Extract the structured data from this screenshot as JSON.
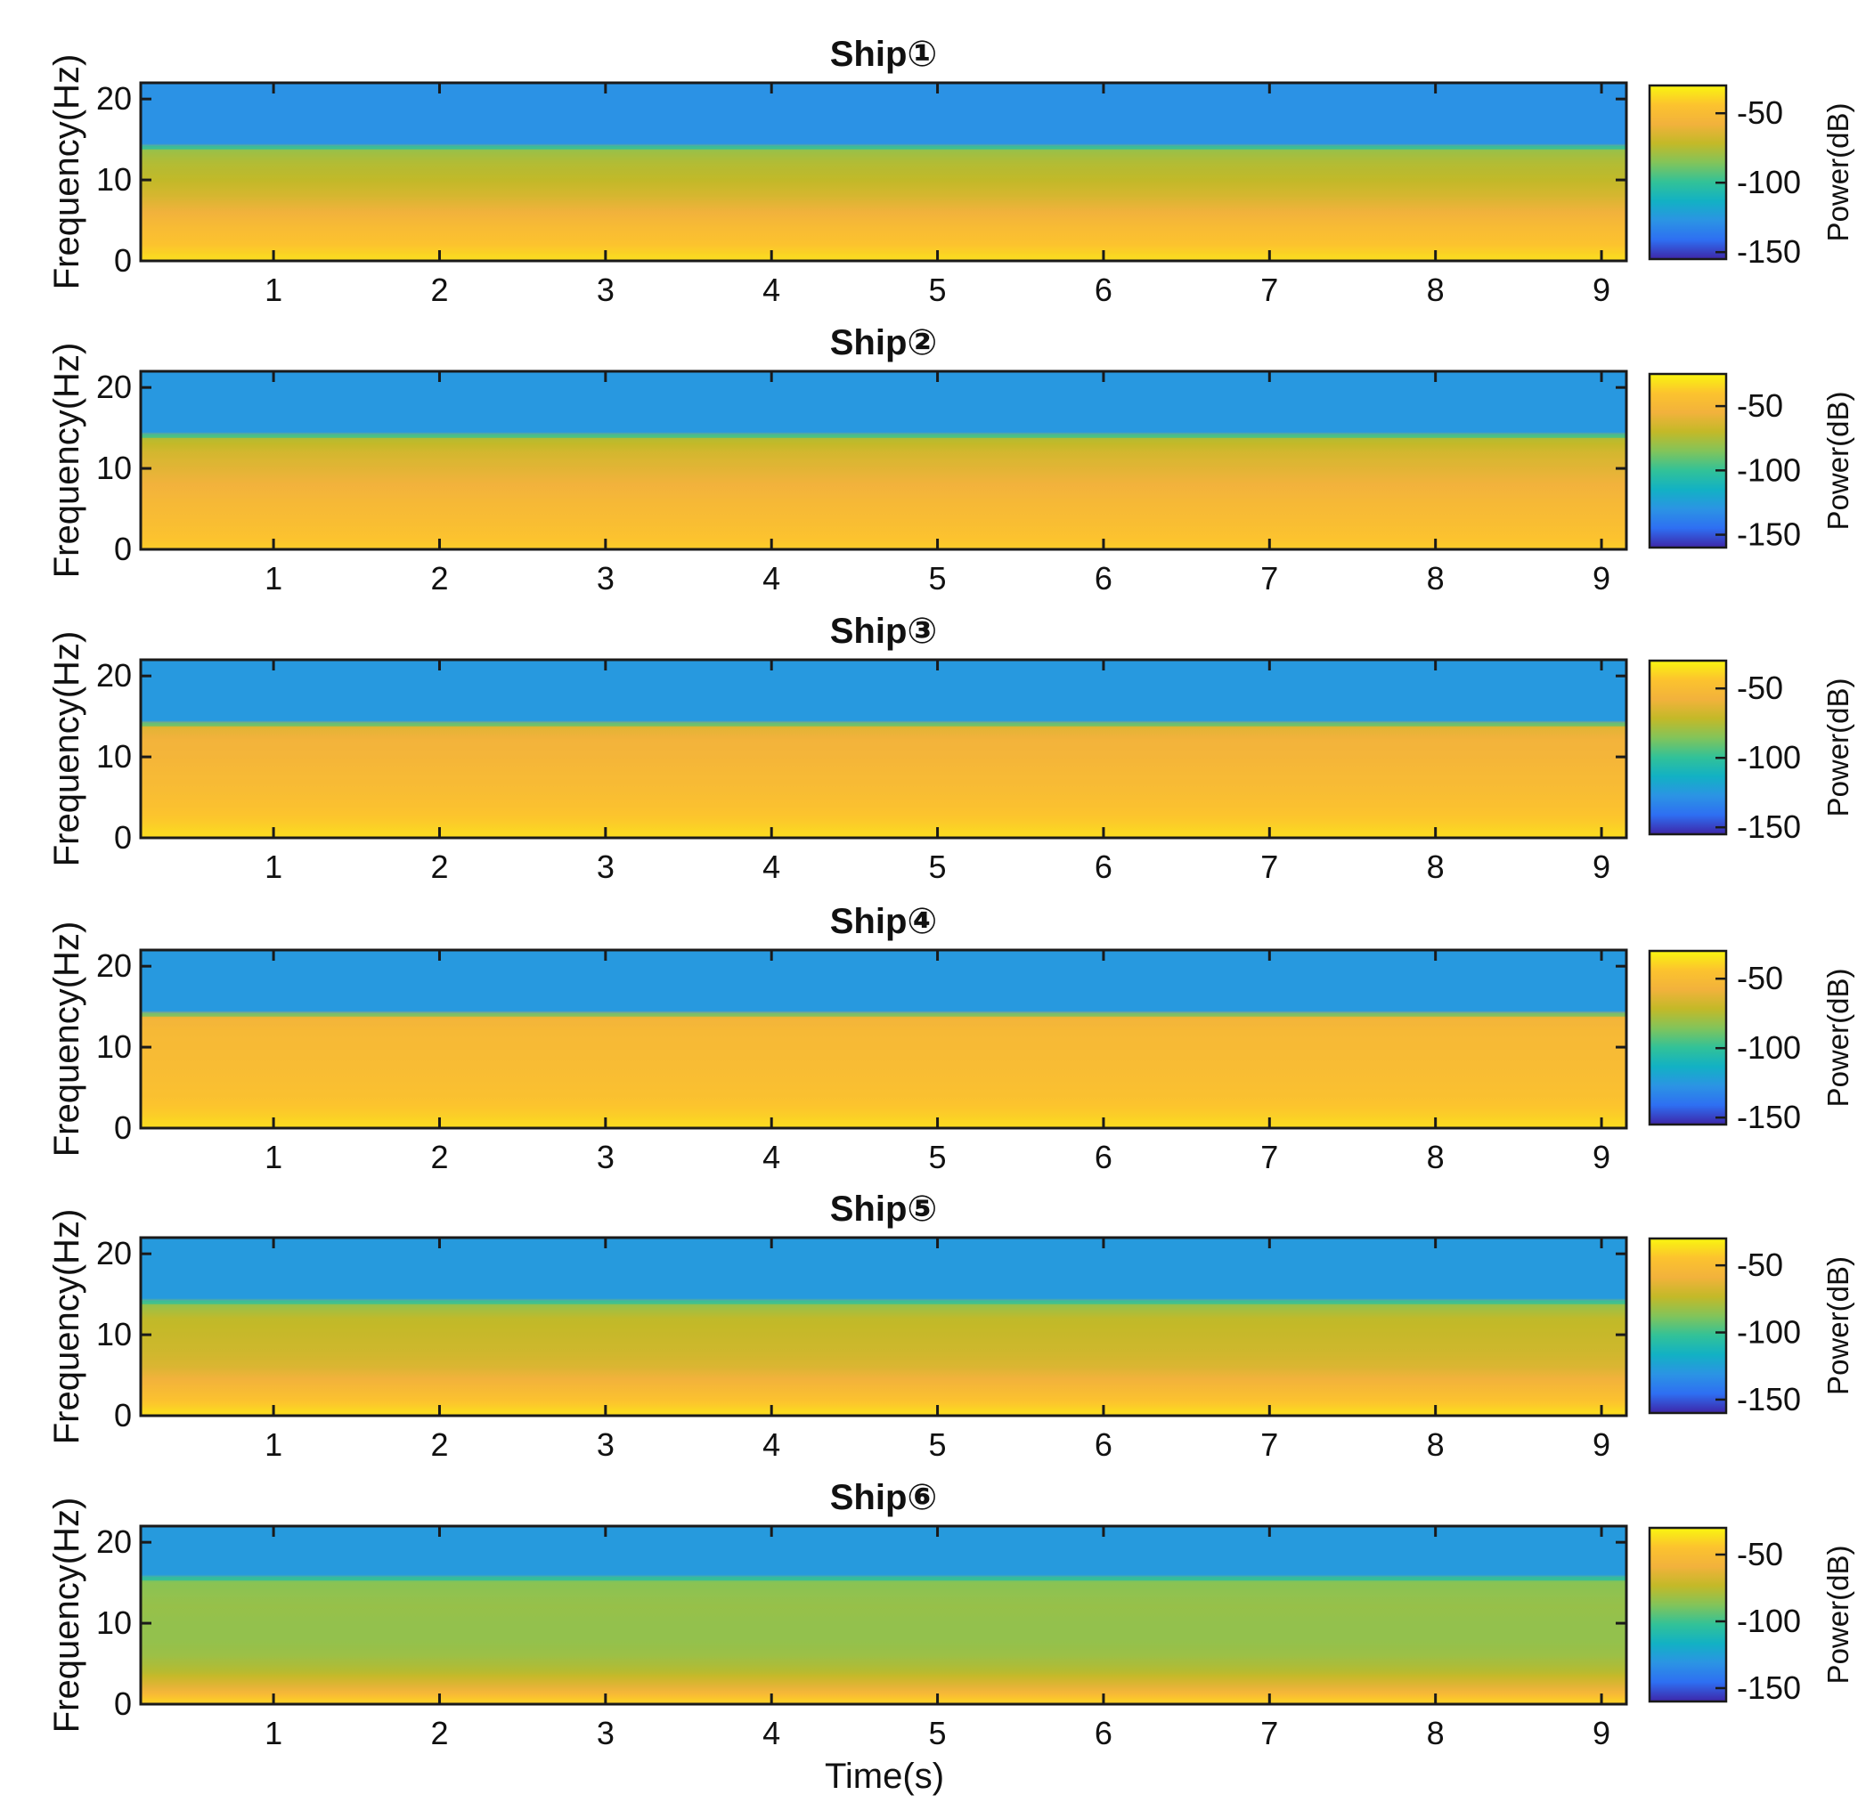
{
  "figure": {
    "xlabel": "Time(s)",
    "ylabel": "Frequency(Hz)",
    "colorbar_label": "Power(dB)",
    "colormap": [
      "#3e26a8",
      "#2e6ff2",
      "#2b94e4",
      "#12b1c4",
      "#32c298",
      "#82c45a",
      "#c3b928",
      "#f2b23c",
      "#fcc32e",
      "#f9f60f"
    ]
  },
  "chart_data": [
    {
      "type": "heatmap",
      "title": "Ship①",
      "xlabel": "",
      "ylabel": "Frequency(Hz)",
      "xlim": [
        0.2,
        9.15
      ],
      "ylim": [
        0,
        22
      ],
      "xticks": [
        1,
        2,
        3,
        4,
        5,
        6,
        7,
        8,
        9
      ],
      "yticks": [
        0,
        10,
        20
      ],
      "colorbar": {
        "label": "Power(dB)",
        "ticks": [
          -50,
          -100,
          -150
        ],
        "range": [
          -155,
          -30
        ]
      },
      "cutoff_hz": 14,
      "power_db_by_band": {
        "f_hz": [
          0.5,
          2,
          4,
          6,
          8,
          10,
          12,
          13.5,
          18
        ],
        "db": [
          -38,
          -44,
          -50,
          -58,
          -66,
          -72,
          -75,
          -80,
          -128
        ]
      }
    },
    {
      "type": "heatmap",
      "title": "Ship②",
      "xlabel": "",
      "ylabel": "Frequency(Hz)",
      "xlim": [
        0.2,
        9.15
      ],
      "ylim": [
        0,
        22
      ],
      "xticks": [
        1,
        2,
        3,
        4,
        5,
        6,
        7,
        8,
        9
      ],
      "yticks": [
        0,
        10,
        20
      ],
      "colorbar": {
        "label": "Power(dB)",
        "ticks": [
          -50,
          -100,
          -150
        ],
        "range": [
          -160,
          -25
        ]
      },
      "cutoff_hz": 14,
      "power_db_by_band": {
        "f_hz": [
          0.5,
          2,
          4,
          6,
          8,
          10,
          12,
          13.5,
          18
        ],
        "db": [
          -38,
          -42,
          -46,
          -50,
          -55,
          -60,
          -65,
          -72,
          -128
        ]
      }
    },
    {
      "type": "heatmap",
      "title": "Ship③",
      "xlabel": "",
      "ylabel": "Frequency(Hz)",
      "xlim": [
        0.2,
        9.15
      ],
      "ylim": [
        0,
        22
      ],
      "xticks": [
        1,
        2,
        3,
        4,
        5,
        6,
        7,
        8,
        9
      ],
      "yticks": [
        0,
        10,
        20
      ],
      "colorbar": {
        "label": "Power(dB)",
        "ticks": [
          -50,
          -100,
          -150
        ],
        "range": [
          -155,
          -30
        ]
      },
      "cutoff_hz": 14,
      "power_db_by_band": {
        "f_hz": [
          0.5,
          2,
          4,
          6,
          8,
          10,
          12,
          13.5,
          18
        ],
        "db": [
          -38,
          -42,
          -46,
          -50,
          -52,
          -55,
          -57,
          -62,
          -125
        ]
      }
    },
    {
      "type": "heatmap",
      "title": "Ship④",
      "xlabel": "",
      "ylabel": "Frequency(Hz)",
      "xlim": [
        0.2,
        9.15
      ],
      "ylim": [
        0,
        22
      ],
      "xticks": [
        1,
        2,
        3,
        4,
        5,
        6,
        7,
        8,
        9
      ],
      "yticks": [
        0,
        10,
        20
      ],
      "colorbar": {
        "label": "Power(dB)",
        "ticks": [
          -50,
          -100,
          -150
        ],
        "range": [
          -155,
          -30
        ]
      },
      "cutoff_hz": 14,
      "power_db_by_band": {
        "f_hz": [
          0.5,
          2,
          4,
          6,
          8,
          10,
          12,
          13.5,
          18
        ],
        "db": [
          -38,
          -42,
          -46,
          -48,
          -50,
          -51,
          -52,
          -56,
          -125
        ]
      }
    },
    {
      "type": "heatmap",
      "title": "Ship⑤",
      "xlabel": "",
      "ylabel": "Frequency(Hz)",
      "xlim": [
        0.2,
        9.15
      ],
      "ylim": [
        0,
        22
      ],
      "xticks": [
        1,
        2,
        3,
        4,
        5,
        6,
        7,
        8,
        9
      ],
      "yticks": [
        0,
        10,
        20
      ],
      "colorbar": {
        "label": "Power(dB)",
        "ticks": [
          -50,
          -100,
          -150
        ],
        "range": [
          -160,
          -30
        ]
      },
      "cutoff_hz": 14,
      "power_db_by_band": {
        "f_hz": [
          0.5,
          2,
          4,
          6,
          8,
          10,
          12,
          13.5,
          18
        ],
        "db": [
          -38,
          -46,
          -56,
          -66,
          -70,
          -72,
          -74,
          -82,
          -128
        ]
      }
    },
    {
      "type": "heatmap",
      "title": "Ship⑥",
      "xlabel": "Time(s)",
      "ylabel": "Frequency(Hz)",
      "xlim": [
        0.2,
        9.15
      ],
      "ylim": [
        0,
        22
      ],
      "xticks": [
        1,
        2,
        3,
        4,
        5,
        6,
        7,
        8,
        9
      ],
      "yticks": [
        0,
        10,
        20
      ],
      "colorbar": {
        "label": "Power(dB)",
        "ticks": [
          -50,
          -100,
          -150
        ],
        "range": [
          -160,
          -30
        ]
      },
      "cutoff_hz": 15.5,
      "power_db_by_band": {
        "f_hz": [
          0.5,
          2,
          4,
          6,
          8,
          10,
          12,
          15,
          18
        ],
        "db": [
          -42,
          -62,
          -76,
          -82,
          -84,
          -84,
          -83,
          -86,
          -128
        ]
      }
    }
  ]
}
